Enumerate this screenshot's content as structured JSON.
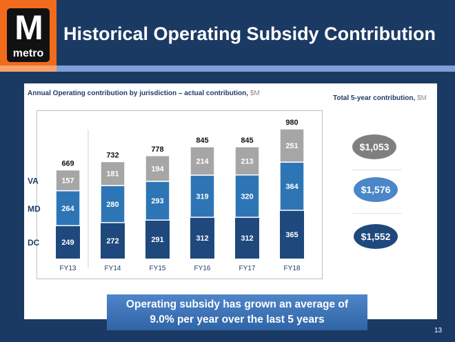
{
  "header": {
    "title": "Historical Operating Subsidy Contribution",
    "logo_text": "M metro"
  },
  "chart_data": {
    "type": "bar",
    "stacked": true,
    "title": "Annual Operating contribution by jurisdiction – actual contribution,",
    "title_unit": "$M",
    "categories": [
      "FY13",
      "FY14",
      "FY15",
      "FY16",
      "FY17",
      "FY18"
    ],
    "series": [
      {
        "name": "DC",
        "color": "#1f497d",
        "values": [
          249,
          272,
          291,
          312,
          312,
          365
        ]
      },
      {
        "name": "MD",
        "color": "#2e75b6",
        "values": [
          264,
          280,
          293,
          319,
          320,
          364
        ]
      },
      {
        "name": "VA",
        "color": "#a6a6a6",
        "values": [
          157,
          181,
          194,
          214,
          213,
          251
        ]
      }
    ],
    "totals": [
      669,
      732,
      778,
      845,
      845,
      980
    ],
    "grid": false
  },
  "totals_panel": {
    "title": "Total 5-year contribution,",
    "unit": "$M",
    "items": [
      {
        "label": "$1,053",
        "color": "#7f7f7f"
      },
      {
        "label": "$1,576",
        "color": "#4a86c8"
      },
      {
        "label": "$1,552",
        "color": "#1f497d"
      }
    ]
  },
  "callout": {
    "line1": "Operating subsidy has grown an average of",
    "line2": "9.0% per year over the last 5 years"
  },
  "page_number": "13"
}
